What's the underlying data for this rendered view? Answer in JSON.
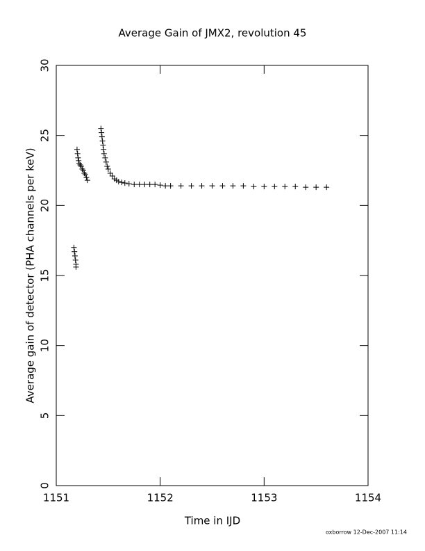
{
  "chart_data": {
    "type": "scatter",
    "title": "Average Gain of JMX2, revolution 45",
    "xlabel": "Time in IJD",
    "ylabel": "Average gain of detector (PHA channels per keV)",
    "footer": "oxborrow 12-Dec-2007 11:14",
    "marker": "+",
    "color": "#000000",
    "xlim": [
      1151,
      1154
    ],
    "xticks": [
      1151,
      1152,
      1153,
      1154
    ],
    "ylim": [
      0,
      30
    ],
    "yticks": [
      0,
      5,
      10,
      15,
      20,
      25,
      30
    ],
    "x": [
      1151.17,
      1151.175,
      1151.18,
      1151.185,
      1151.19,
      1151.19,
      1151.2,
      1151.205,
      1151.21,
      1151.215,
      1151.22,
      1151.23,
      1151.24,
      1151.25,
      1151.26,
      1151.27,
      1151.28,
      1151.29,
      1151.3,
      1151.43,
      1151.435,
      1151.44,
      1151.445,
      1151.45,
      1151.455,
      1151.46,
      1151.47,
      1151.48,
      1151.49,
      1151.5,
      1151.52,
      1151.54,
      1151.56,
      1151.58,
      1151.6,
      1151.63,
      1151.66,
      1151.7,
      1151.75,
      1151.8,
      1151.85,
      1151.9,
      1151.95,
      1152.0,
      1152.05,
      1152.1,
      1152.2,
      1152.3,
      1152.4,
      1152.5,
      1152.6,
      1152.7,
      1152.8,
      1152.9,
      1153.0,
      1153.1,
      1153.2,
      1153.3,
      1153.4,
      1153.5,
      1153.6
    ],
    "values": [
      17.0,
      16.7,
      16.4,
      16.1,
      15.8,
      15.6,
      24.0,
      23.7,
      23.4,
      23.2,
      23.0,
      22.9,
      22.8,
      22.6,
      22.5,
      22.3,
      22.2,
      22.0,
      21.8,
      25.5,
      25.2,
      24.9,
      24.6,
      24.3,
      24.0,
      23.7,
      23.4,
      23.1,
      22.8,
      22.6,
      22.3,
      22.1,
      21.9,
      21.8,
      21.7,
      21.65,
      21.6,
      21.55,
      21.5,
      21.5,
      21.5,
      21.5,
      21.5,
      21.45,
      21.4,
      21.4,
      21.4,
      21.4,
      21.4,
      21.4,
      21.4,
      21.4,
      21.4,
      21.35,
      21.35,
      21.35,
      21.35,
      21.35,
      21.3,
      21.3,
      21.3
    ]
  }
}
